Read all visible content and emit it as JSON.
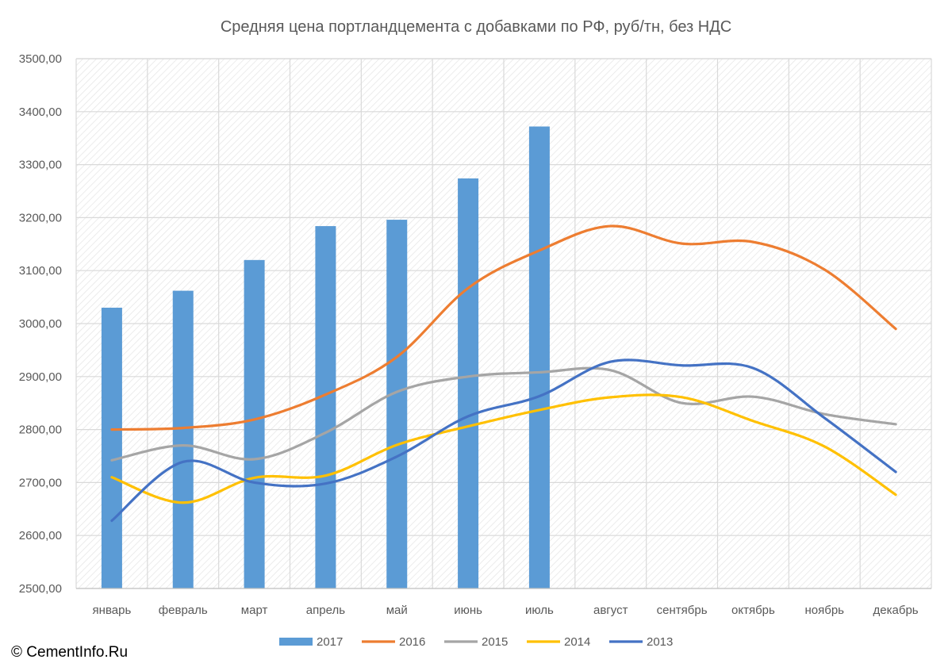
{
  "chart_data": {
    "type": "bar+line",
    "title": "Средняя цена портландцемента с добавками по РФ, руб/тн, без НДС",
    "xlabel": "",
    "ylabel": "",
    "ylim": [
      2500,
      3500
    ],
    "ytick_step": 100,
    "ytick_labels": [
      "2500,00",
      "2600,00",
      "2700,00",
      "2800,00",
      "2900,00",
      "3000,00",
      "3100,00",
      "3200,00",
      "3300,00",
      "3400,00",
      "3500,00"
    ],
    "grid": true,
    "legend_position": "bottom",
    "categories": [
      "январь",
      "февраль",
      "март",
      "апрель",
      "май",
      "июнь",
      "июль",
      "август",
      "сентябрь",
      "октябрь",
      "ноябрь",
      "декабрь"
    ],
    "series": [
      {
        "name": "2017",
        "type": "bar",
        "color": "#5B9BD5",
        "values": [
          3030,
          3062,
          3120,
          3184,
          3196,
          3274,
          3372,
          null,
          null,
          null,
          null,
          null
        ]
      },
      {
        "name": "2016",
        "type": "line",
        "color": "#ED7D31",
        "values": [
          2800,
          2803,
          2819,
          2866,
          2937,
          3067,
          3138,
          3184,
          3151,
          3154,
          3102,
          2990
        ]
      },
      {
        "name": "2015",
        "type": "line",
        "color": "#A5A5A5",
        "values": [
          2742,
          2770,
          2744,
          2794,
          2871,
          2900,
          2908,
          2912,
          2850,
          2862,
          2829,
          2810
        ]
      },
      {
        "name": "2014",
        "type": "line",
        "color": "#FFC000",
        "values": [
          2710,
          2662,
          2709,
          2713,
          2771,
          2806,
          2837,
          2861,
          2861,
          2816,
          2768,
          2677
        ]
      },
      {
        "name": "2013",
        "type": "line",
        "color": "#4472C4",
        "values": [
          2628,
          2739,
          2700,
          2698,
          2749,
          2825,
          2863,
          2928,
          2921,
          2916,
          2822,
          2720
        ]
      }
    ]
  },
  "copyright": "© CementInfo.Ru"
}
